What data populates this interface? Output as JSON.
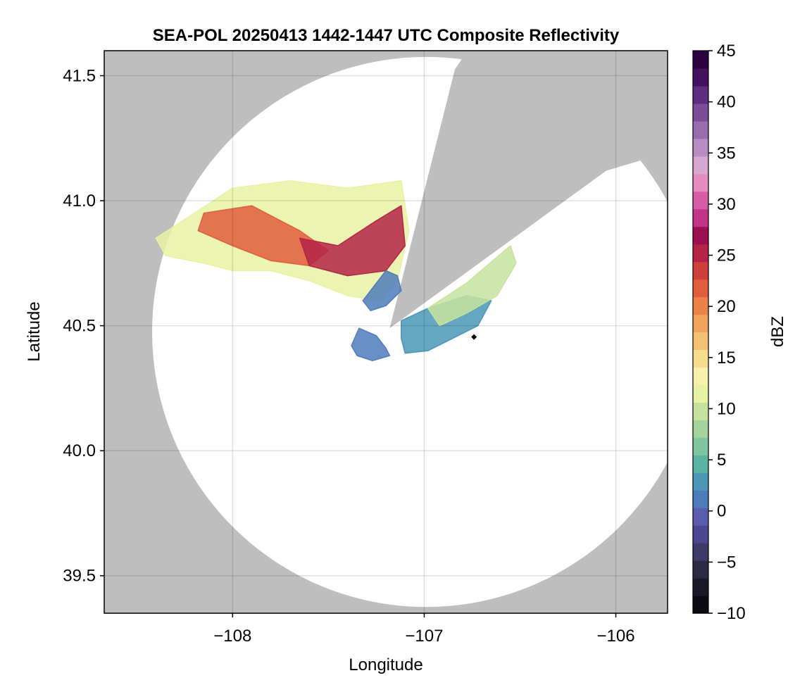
{
  "chart_data": {
    "type": "heatmap",
    "title": "SEA-POL 20250413 1442-1447 UTC Composite Reflectivity",
    "xlabel": "Longitude",
    "ylabel": "Latitude",
    "xlim": [
      -108.67,
      -105.73
    ],
    "ylim": [
      39.35,
      41.6
    ],
    "xticks": [
      -108,
      -107,
      -106
    ],
    "xtick_labels": [
      "−108",
      "−107",
      "−106"
    ],
    "yticks": [
      39.5,
      40.0,
      40.5,
      41.0,
      41.5
    ],
    "ytick_labels": [
      "39.5",
      "40.0",
      "40.5",
      "41.0",
      "41.5"
    ],
    "grid": true,
    "background_color": "#bebebe",
    "radar": {
      "center_lon": -106.99,
      "center_lat": 40.475,
      "lon_radius": 1.43,
      "lat_radius": 1.1,
      "blocked_sectors": [
        {
          "from_lon": -107.18,
          "from_lat": 40.49,
          "to_lon": -106.84,
          "to_lat": 41.525,
          "end_lon": -106.05,
          "end_lat": 41.12
        },
        {
          "note_lon": -107.18,
          "note_lat": 40.49
        }
      ]
    },
    "reflectivity_regions": [
      {
        "level": "weak",
        "dbz": 2,
        "polygon": [
          [
            -107.34,
            40.49
          ],
          [
            -107.25,
            40.46
          ],
          [
            -107.2,
            40.41
          ],
          [
            -107.18,
            40.38
          ],
          [
            -107.27,
            40.36
          ],
          [
            -107.35,
            40.38
          ],
          [
            -107.38,
            40.42
          ]
        ]
      },
      {
        "level": "weak",
        "dbz": 3,
        "polygon": [
          [
            -107.12,
            40.52
          ],
          [
            -106.98,
            40.57
          ],
          [
            -106.78,
            40.62
          ],
          [
            -106.65,
            40.6
          ],
          [
            -106.72,
            40.5
          ],
          [
            -106.85,
            40.45
          ],
          [
            -106.98,
            40.4
          ],
          [
            -107.1,
            40.39
          ],
          [
            -107.12,
            40.45
          ]
        ]
      },
      {
        "level": "moderate",
        "dbz": 12,
        "polygon": [
          [
            -108.0,
            41.05
          ],
          [
            -107.7,
            41.08
          ],
          [
            -107.4,
            41.05
          ],
          [
            -107.12,
            41.08
          ],
          [
            -107.08,
            40.88
          ],
          [
            -107.14,
            40.68
          ],
          [
            -107.22,
            40.6
          ],
          [
            -107.4,
            40.62
          ],
          [
            -107.6,
            40.68
          ],
          [
            -107.8,
            40.72
          ],
          [
            -108.0,
            40.72
          ],
          [
            -108.15,
            40.75
          ],
          [
            -108.35,
            40.78
          ],
          [
            -108.4,
            40.85
          ],
          [
            -108.2,
            40.95
          ]
        ]
      },
      {
        "level": "strong",
        "dbz": 22,
        "polygon": [
          [
            -108.15,
            40.95
          ],
          [
            -107.9,
            40.98
          ],
          [
            -107.65,
            40.88
          ],
          [
            -107.5,
            40.8
          ],
          [
            -107.6,
            40.74
          ],
          [
            -107.8,
            40.76
          ],
          [
            -108.0,
            40.82
          ],
          [
            -108.18,
            40.88
          ]
        ]
      },
      {
        "level": "strong",
        "dbz": 26,
        "polygon": [
          [
            -107.65,
            40.85
          ],
          [
            -107.45,
            40.82
          ],
          [
            -107.25,
            40.92
          ],
          [
            -107.12,
            40.98
          ],
          [
            -107.1,
            40.82
          ],
          [
            -107.2,
            40.72
          ],
          [
            -107.4,
            40.7
          ],
          [
            -107.6,
            40.74
          ]
        ]
      },
      {
        "level": "moderate",
        "dbz": 10,
        "polygon": [
          [
            -106.98,
            40.57
          ],
          [
            -106.78,
            40.67
          ],
          [
            -106.55,
            40.82
          ],
          [
            -106.52,
            40.75
          ],
          [
            -106.62,
            40.62
          ],
          [
            -106.78,
            40.55
          ],
          [
            -106.92,
            40.5
          ]
        ]
      },
      {
        "level": "weak",
        "dbz": 1,
        "polygon": [
          [
            -107.32,
            40.6
          ],
          [
            -107.2,
            40.72
          ],
          [
            -107.14,
            40.7
          ],
          [
            -107.12,
            40.64
          ],
          [
            -107.2,
            40.58
          ],
          [
            -107.28,
            40.56
          ]
        ]
      }
    ],
    "colorbar": {
      "label": "dBZ",
      "min": -10,
      "max": 45,
      "ticks": [
        -10,
        -5,
        0,
        5,
        10,
        15,
        20,
        25,
        30,
        35,
        40,
        45
      ],
      "tick_labels": [
        "−10",
        "−5",
        "0",
        "5",
        "10",
        "15",
        "20",
        "25",
        "30",
        "35",
        "40",
        "45"
      ],
      "colors": [
        "#0b0a12",
        "#1a1826",
        "#2b2a45",
        "#3e3a6a",
        "#4c4791",
        "#5a5cb0",
        "#4e7cbb",
        "#4a98b6",
        "#5bb3a3",
        "#7fc59f",
        "#a3d49b",
        "#c6e39e",
        "#e7f2a2",
        "#f8f1ab",
        "#f6dc8c",
        "#f2c272",
        "#f0a35b",
        "#ec8248",
        "#e15e3d",
        "#cf3f3c",
        "#b52446",
        "#9d0f4f",
        "#c2348a",
        "#d85ba5",
        "#e68bbf",
        "#d8a6d3",
        "#b98bc3",
        "#9a6cae",
        "#7d4b97",
        "#5f2c80",
        "#45105f",
        "#2d0040"
      ]
    }
  }
}
